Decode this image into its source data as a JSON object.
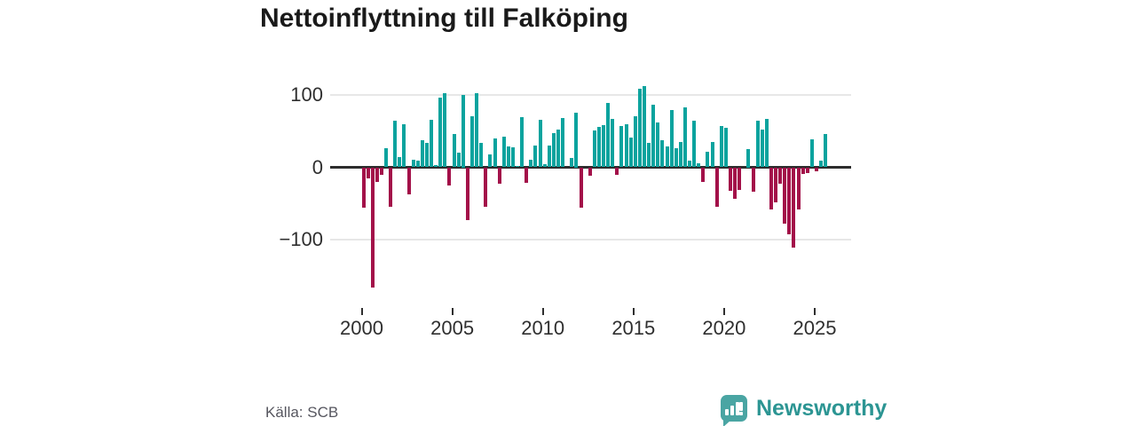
{
  "title": "Nettoinflyttning till Falköping",
  "source": "Källa: SCB",
  "brand": {
    "name": "Newsworthy"
  },
  "colors": {
    "positive_bar": "#0aa39e",
    "negative_bar": "#a31049",
    "axis_line": "#2d2d2d",
    "gridline": "#e7e7e7",
    "brand_teal": "#2c9593"
  },
  "chart_data": {
    "type": "bar",
    "title": "Nettoinflyttning till Falköping",
    "frequency": "quarterly",
    "start": "2000-Q1",
    "end": "2025-Q3",
    "xlabel": "",
    "ylabel": "",
    "x_ticks": [
      2000,
      2005,
      2010,
      2015,
      2020,
      2025
    ],
    "y_ticks": [
      100,
      0,
      -100
    ],
    "y_tick_labels": [
      "100",
      "0",
      "−100"
    ],
    "ylim": [
      -180,
      125
    ],
    "grid": "horizontal-only",
    "legend": "none",
    "values": [
      -56,
      -15,
      -166,
      -20,
      -10,
      26,
      -55,
      64,
      14,
      60,
      -38,
      10,
      9,
      37,
      34,
      66,
      3,
      96,
      103,
      -25,
      46,
      20,
      100,
      -73,
      70,
      103,
      34,
      -54,
      18,
      40,
      -23,
      42,
      29,
      28,
      2,
      69,
      -21,
      10,
      30,
      66,
      4,
      30,
      47,
      52,
      68,
      0,
      13,
      75,
      -56,
      0,
      -12,
      51,
      56,
      58,
      89,
      67,
      -11,
      57,
      60,
      41,
      70,
      109,
      112,
      34,
      86,
      62,
      38,
      29,
      79,
      26,
      35,
      83,
      9,
      64,
      5,
      -20,
      21,
      35,
      -54,
      57,
      55,
      -32,
      -44,
      -31,
      0,
      25,
      -34,
      65,
      52,
      67,
      -58,
      -49,
      -23,
      -78,
      -93,
      -111,
      -58,
      -9,
      -8,
      39,
      -5,
      9,
      46
    ]
  }
}
